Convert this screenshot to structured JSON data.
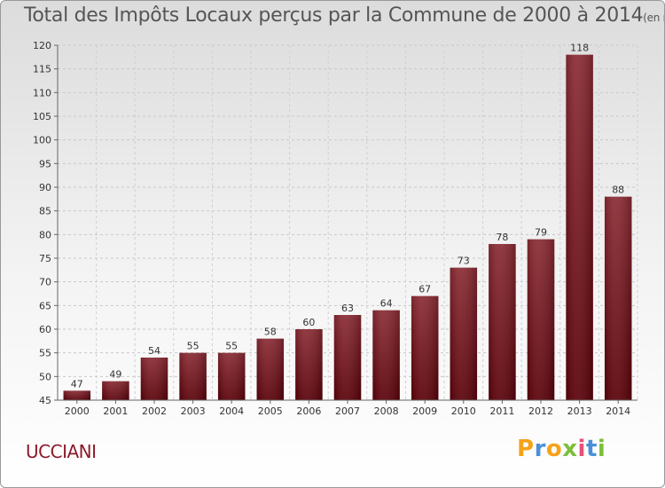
{
  "title": "Total des Impôts Locaux perçus par la Commune de 2000 à 2014",
  "title_unit": "(en milliers d'€)",
  "commune": "UCCIANI",
  "logo": {
    "text": "Proxiti",
    "letters": [
      "P",
      "r",
      "o",
      "x",
      "i",
      "t",
      "i"
    ],
    "colors": [
      "#f6a21a",
      "#4a90d9",
      "#f6a21a",
      "#7bbf3a",
      "#e94e77",
      "#4a90d9",
      "#7bbf3a"
    ]
  },
  "chart_data": {
    "type": "bar",
    "title": "Total des Impôts Locaux perçus par la Commune de 2000 à 2014",
    "categories": [
      "2000",
      "2001",
      "2002",
      "2003",
      "2004",
      "2005",
      "2006",
      "2007",
      "2008",
      "2009",
      "2010",
      "2011",
      "2012",
      "2013",
      "2014"
    ],
    "values": [
      47,
      49,
      54,
      55,
      55,
      58,
      60,
      63,
      64,
      67,
      73,
      78,
      79,
      118,
      88
    ],
    "ylim": [
      45,
      120
    ],
    "yticks": [
      45,
      50,
      55,
      60,
      65,
      70,
      75,
      80,
      85,
      90,
      95,
      100,
      105,
      110,
      115,
      120
    ],
    "xlabel": "",
    "ylabel": "",
    "bar_color": "#7a1420"
  }
}
